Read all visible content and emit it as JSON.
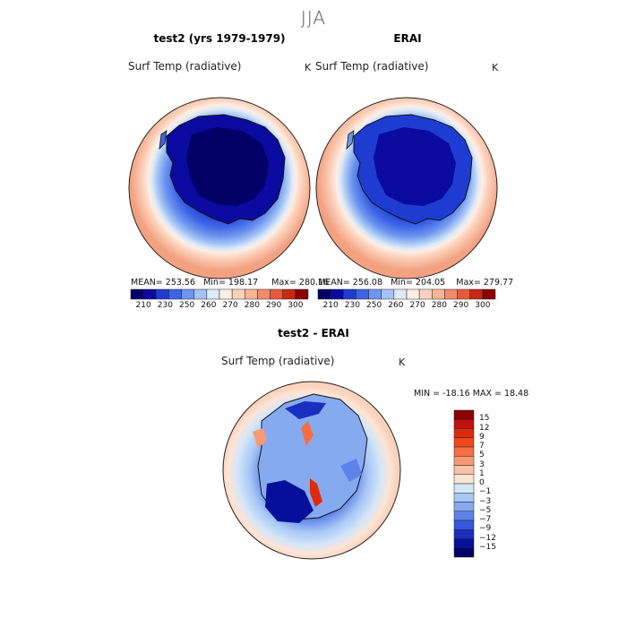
{
  "figure": {
    "season": "JJA",
    "land_outline_color": "#111111"
  },
  "panels": {
    "test": {
      "title": "test2 (yrs 1979-1979)",
      "variable": "Surf Temp (radiative)",
      "units": "K",
      "mean_label": "MEAN= 253.56",
      "min_label": "Min= 198.17",
      "max_label": "Max= 280.16"
    },
    "obs": {
      "title": "ERAI",
      "variable": "Surf Temp (radiative)",
      "units": "K",
      "mean_label": "MEAN= 256.08",
      "min_label": "Min= 204.05",
      "max_label": "Max= 279.77"
    },
    "diff": {
      "title": "test2 - ERAI",
      "variable": "Surf Temp (radiative)",
      "units": "K",
      "minmax_label": "MIN = -18.16 MAX =  18.48"
    }
  },
  "colorbars": {
    "abs": {
      "tick_labels": [
        "210",
        "230",
        "250",
        "260",
        "270",
        "280",
        "290",
        "300"
      ],
      "colors": [
        "#000066",
        "#0a0aa0",
        "#1e3cd2",
        "#3c64e6",
        "#6e96f0",
        "#a5c3f5",
        "#dcebfa",
        "#ffeee4",
        "#fcd2bc",
        "#f8b494",
        "#f08c6c",
        "#e65a3c",
        "#c82814",
        "#8c0000"
      ]
    },
    "diff": {
      "tick_labels": [
        "15",
        "12",
        "9",
        "7",
        "5",
        "3",
        "1",
        "0",
        "−1",
        "−3",
        "−5",
        "−7",
        "−9",
        "−12",
        "−15"
      ],
      "colors": [
        "#8c0000",
        "#c01010",
        "#e02a0a",
        "#f04a1c",
        "#f56e44",
        "#f99a74",
        "#fcc2a6",
        "#fde5d6",
        "#d4e6fa",
        "#a8c8f5",
        "#86aaf0",
        "#5e82e8",
        "#3458dc",
        "#1a2ec0",
        "#04109a",
        "#000066"
      ]
    }
  }
}
